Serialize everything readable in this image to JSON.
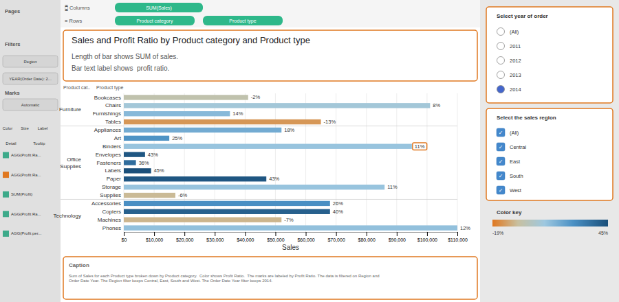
{
  "chart_data": {
    "type": "bar",
    "orientation": "horizontal",
    "title": "Sales and Profit Ratio by Product category and Product type",
    "subtitle": [
      "Length of bar shows SUM of sales.",
      "Bar text label shows  profit ratio."
    ],
    "xlabel": "Sales",
    "categories": [
      "Bookcases",
      "Chairs",
      "Furnishings",
      "Tables",
      "Appliances",
      "Art",
      "Binders",
      "Envelopes",
      "Fasteners",
      "Labels",
      "Paper",
      "Storage",
      "Supplies",
      "Accessories",
      "Copiers",
      "Machines",
      "Phones"
    ],
    "values": [
      41000,
      101000,
      35000,
      65000,
      52000,
      15000,
      95000,
      7000,
      4000,
      9000,
      47000,
      86000,
      17000,
      68000,
      68000,
      52000,
      110000
    ],
    "profit_ratios": [
      -2,
      8,
      14,
      -13,
      18,
      25,
      11,
      43,
      36,
      45,
      43,
      11,
      -6,
      26,
      40,
      -7,
      12
    ],
    "profit_ratio_labels": [
      "-2%",
      "8%",
      "14%",
      "-13%",
      "18%",
      "25%",
      "11%",
      "43%",
      "36%",
      "45%",
      "43%",
      "11%",
      "-6%",
      "26%",
      "40%",
      "-7%",
      "12%"
    ],
    "groups": [
      {
        "label": "Furniture",
        "indices": [
          0,
          1,
          2,
          3
        ]
      },
      {
        "label": "Office\nSupplies",
        "indices": [
          4,
          5,
          6,
          7,
          8,
          9,
          10,
          11,
          12
        ]
      },
      {
        "label": "Technology",
        "indices": [
          13,
          14,
          15,
          16
        ]
      }
    ],
    "xlim": [
      0,
      110000
    ],
    "xticks": [
      {
        "value": 0,
        "label": "$0"
      },
      {
        "value": 10000,
        "label": "$10,000"
      },
      {
        "value": 20000,
        "label": "$20,000"
      },
      {
        "value": 30000,
        "label": "$30,000"
      },
      {
        "value": 40000,
        "label": "$40,000"
      },
      {
        "value": 50000,
        "label": "$50,000"
      },
      {
        "value": 60000,
        "label": "$60,000"
      },
      {
        "value": 70000,
        "label": "$70,000"
      },
      {
        "value": 80000,
        "label": "$80,000"
      },
      {
        "value": 90000,
        "label": "$90,000"
      },
      {
        "value": 100000,
        "label": "$100,000"
      },
      {
        "value": 110000,
        "label": "$110,000"
      }
    ],
    "grid": true,
    "highlight": {
      "index": 6,
      "color": "#e07820"
    },
    "color_scale": {
      "title": "Color key",
      "range": [
        -19,
        45
      ],
      "stops": [
        [
          0.0,
          "#e07820"
        ],
        [
          0.22,
          "#c8c0a0"
        ],
        [
          0.45,
          "#9ec8e0"
        ],
        [
          0.7,
          "#4a90c4"
        ],
        [
          1.0,
          "#1a4f7a"
        ]
      ],
      "ticks": [
        {
          "value": -19,
          "label": "-19%"
        },
        {
          "value": 45,
          "label": "45%"
        }
      ]
    },
    "dashboard": {
      "pages_label": "Pages",
      "filters_label": "Filters",
      "filter_items": [
        "Region",
        "YEAR(Order Date): 2..."
      ],
      "marks_label": "Marks",
      "automatic_label": "Automatic",
      "encoding_labels": [
        "Color",
        "Size",
        "Label",
        "Detail",
        "Tooltip"
      ],
      "marks_items": [
        "AGG(Profit Ra...",
        "AGG(Profit Ra...",
        "SUM(Profit)",
        "AGG(Profit Ra...",
        "AGG(Profit per..."
      ],
      "marks_colors": [
        "#3daa8a",
        "#e07820",
        "#3daa8a",
        "#3daa8a",
        "#3daa8a"
      ],
      "columns_label": "⧮ Columns",
      "col_pill": "SUM(Sales)",
      "rows_label": "≡ Rows",
      "row_pills": [
        "Product category",
        "Product type"
      ],
      "column_headers": [
        "Product cat..",
        "Product type"
      ],
      "caption_title": "Caption",
      "caption_text": "Sum of Sales for each Product type broken down by Product category.  Color shows Profit Ratio.  The marks are labeled by Profit Ratio. The data is filtered on Region and\nOrder Date Year. The Region filter keeps Central, East, South and West. The Order Date Year filter keeps 2014.",
      "sidebar_title1": "Select year of order",
      "sidebar_options1": [
        "(All)",
        "2011",
        "2012",
        "2013",
        "2014"
      ],
      "sidebar_selected1": "2014",
      "sidebar_title2": "Select the sales region",
      "sidebar_options2": [
        "(All)",
        "Central",
        "East",
        "South",
        "West"
      ],
      "check_mark": "✓"
    }
  }
}
